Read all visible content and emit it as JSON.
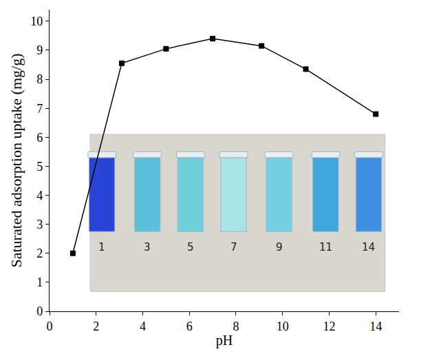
{
  "chart_data": {
    "type": "line",
    "x_label": "pH",
    "y_label": "Saturated adsorption uptake (mg/g)",
    "x": [
      1,
      3.1,
      5,
      7,
      9.1,
      11,
      14
    ],
    "values": [
      2.0,
      8.55,
      9.05,
      9.4,
      9.15,
      8.35,
      6.8
    ],
    "color": "#000000",
    "marker": "square",
    "line_style": "solid",
    "xlim": [
      0,
      15
    ],
    "xticks": [
      0,
      2,
      4,
      6,
      8,
      10,
      12,
      14
    ],
    "ylim": [
      0,
      10.4
    ],
    "yticks": [
      0,
      1,
      2,
      3,
      4,
      5,
      6,
      7,
      8,
      9,
      10
    ],
    "grid": false,
    "annotations": [
      "1",
      "3",
      "5",
      "7",
      "9",
      "11",
      "14"
    ]
  }
}
